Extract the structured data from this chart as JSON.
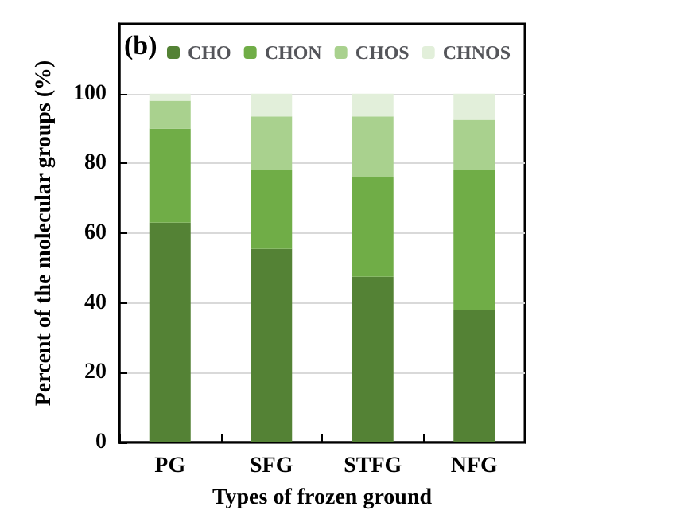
{
  "chart_data": {
    "type": "bar",
    "stacked": true,
    "xlabel": "Types of frozen ground",
    "ylabel": "Percent of the molecular groups (%)",
    "annotations": [
      "(b)"
    ],
    "categories": [
      "PG",
      "SFG",
      "STFG",
      "NFG"
    ],
    "series": [
      {
        "name": "CHO",
        "color": "#548235",
        "values": [
          63,
          55.5,
          47.5,
          38
        ]
      },
      {
        "name": "CHON",
        "color": "#70ad47",
        "values": [
          27,
          22.5,
          28.5,
          40
        ]
      },
      {
        "name": "CHOS",
        "color": "#a9d18e",
        "values": [
          8,
          15.5,
          17.5,
          14.5
        ]
      },
      {
        "name": "CHNOS",
        "color": "#e2efda",
        "values": [
          2,
          6.5,
          6.5,
          7.5
        ]
      }
    ],
    "ylim": [
      0,
      120
    ],
    "yticks": [
      0,
      20,
      40,
      60,
      80,
      100
    ],
    "grid": "y",
    "legend": "top"
  }
}
